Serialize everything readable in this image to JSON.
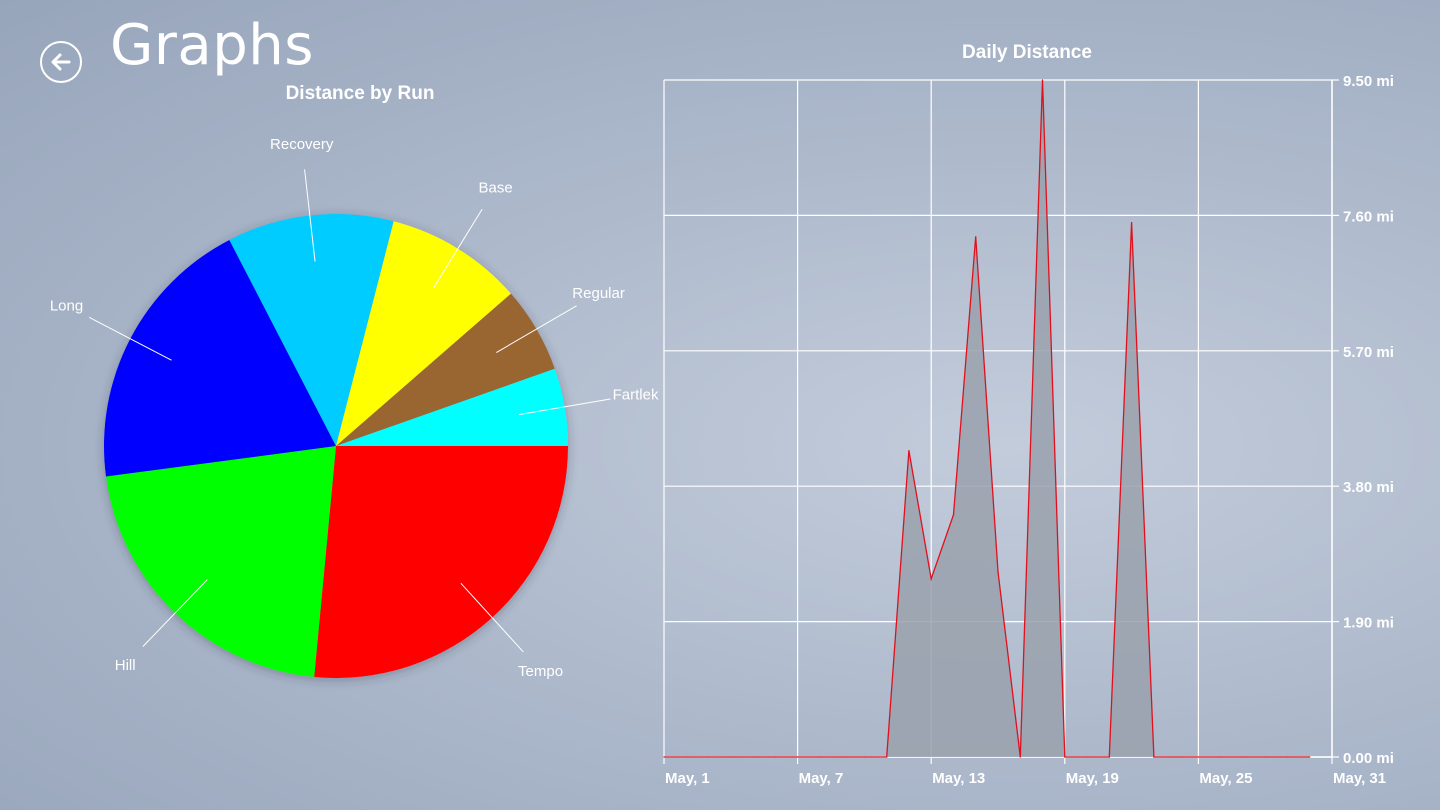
{
  "header": {
    "title": "Graphs",
    "back_icon": "arrow-left-circle-icon"
  },
  "chart_data": [
    {
      "type": "pie",
      "title": "Distance by Run",
      "slices": [
        {
          "label": "Tempo",
          "value": 26.5,
          "color": "#ff0000"
        },
        {
          "label": "Hill",
          "value": 21.4,
          "color": "#00ff00"
        },
        {
          "label": "Long",
          "value": 19.5,
          "color": "#0000ff"
        },
        {
          "label": "Recovery",
          "value": 11.6,
          "color": "#00ccff"
        },
        {
          "label": "Base",
          "value": 9.6,
          "color": "#ffff00"
        },
        {
          "label": "Regular",
          "value": 6.0,
          "color": "#996633"
        },
        {
          "label": "Fartlek",
          "value": 5.4,
          "color": "#00ffff"
        }
      ]
    },
    {
      "type": "area",
      "title": "Daily Distance",
      "xlabel": "",
      "ylabel": "",
      "x_ticks": [
        "May, 1",
        "May, 7",
        "May, 13",
        "May, 19",
        "May, 25",
        "May, 31"
      ],
      "y_ticks": [
        "0.00 mi",
        "1.90 mi",
        "3.80 mi",
        "5.70 mi",
        "7.60 mi",
        "9.50 mi"
      ],
      "ylim": [
        0,
        9.5
      ],
      "x_days": [
        1,
        2,
        3,
        4,
        5,
        6,
        7,
        8,
        9,
        10,
        11,
        12,
        13,
        14,
        15,
        16,
        17,
        18,
        19,
        20,
        21,
        22,
        23,
        24,
        25,
        26,
        27,
        28,
        29,
        30
      ],
      "values": [
        0,
        0,
        0,
        0,
        0,
        0,
        0,
        0,
        0,
        0,
        0,
        4.3,
        2.5,
        3.4,
        7.3,
        2.6,
        0,
        9.5,
        0,
        0,
        0,
        7.5,
        0,
        0,
        0,
        0,
        0,
        0,
        0,
        0
      ],
      "line_color": "#e0101c",
      "fill_color": "#9aa1ad",
      "grid": true,
      "y_axis_side": "right"
    }
  ]
}
